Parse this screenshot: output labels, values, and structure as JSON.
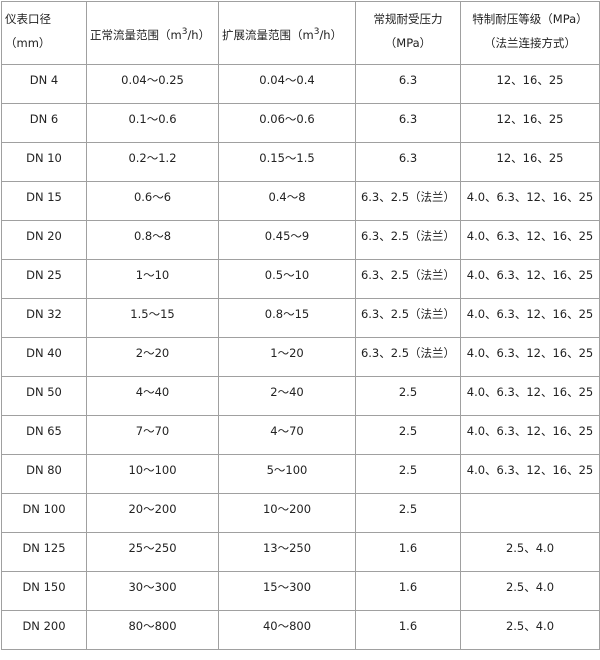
{
  "headers": [
    "仪表口径（mm）",
    "正常流量范围（m",
    "3",
    "/h）",
    "扩展流量范围（m",
    "3",
    "/h）",
    "常规耐受压力（MPa）",
    "特制耐压等级（MPa）（法兰连接方式）"
  ],
  "header_parts": {
    "col1": "仪表口径（mm）",
    "col2_pre": "正常流量范围（m",
    "col2_sup": "3",
    "col2_post": "/h）",
    "col3_pre": "扩展流量范围（m",
    "col3_sup": "3",
    "col3_post": "/h）",
    "col4": "常规耐受压力（MPa）",
    "col5": "特制耐压等级（MPa）（法兰连接方式）"
  },
  "rows": [
    [
      "DN 4",
      "0.04～0.25",
      "0.04～0.4",
      "6.3",
      "12、16、25"
    ],
    [
      "DN 6",
      "0.1～0.6",
      "0.06～0.6",
      "6.3",
      "12、16、25"
    ],
    [
      "DN 10",
      "0.2～1.2",
      "0.15～1.5",
      "6.3",
      "12、16、25"
    ],
    [
      "DN 15",
      "0.6～6",
      "0.4～8",
      "6.3、2.5（法兰）",
      "4.0、6.3、12、16、25"
    ],
    [
      "DN 20",
      "0.8～8",
      "0.45～9",
      "6.3、2.5（法兰）",
      "4.0、6.3、12、16、25"
    ],
    [
      "DN 25",
      "1～10",
      "0.5～10",
      "6.3、2.5（法兰）",
      "4.0、6.3、12、16、25"
    ],
    [
      "DN 32",
      "1.5～15",
      "0.8～15",
      "6.3、2.5（法兰）",
      "4.0、6.3、12、16、25"
    ],
    [
      "DN 40",
      "2～20",
      "1～20",
      "6.3、2.5（法兰）",
      "4.0、6.3、12、16、25"
    ],
    [
      "DN 50",
      "4～40",
      "2～40",
      "2.5",
      "4.0、6.3、12、16、25"
    ],
    [
      "DN 65",
      "7～70",
      "4～70",
      "2.5",
      "4.0、6.3、12、16、25"
    ],
    [
      "DN 80",
      "10～100",
      "5～100",
      "2.5",
      "4.0、6.3、12、16、25"
    ],
    [
      "DN 100",
      "20～200",
      "10～200",
      "2.5",
      ""
    ],
    [
      "DN 125",
      "25～250",
      "13～250",
      "1.6",
      "2.5、4.0"
    ],
    [
      "DN 150",
      "30～300",
      "15～300",
      "1.6",
      "2.5、4.0"
    ],
    [
      "DN 200",
      "80～800",
      "40～800",
      "1.6",
      "2.5、4.0"
    ]
  ]
}
